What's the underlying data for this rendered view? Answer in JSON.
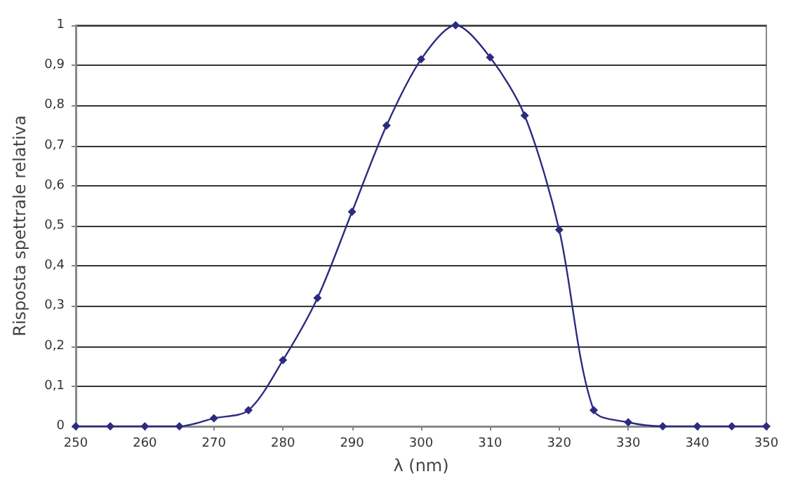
{
  "chart_data": {
    "type": "line",
    "xlabel": "λ (nm)",
    "ylabel": "Risposta spettrale relativa",
    "x": [
      250,
      255,
      260,
      265,
      270,
      275,
      280,
      285,
      290,
      295,
      300,
      305,
      310,
      315,
      320,
      325,
      330,
      335,
      340,
      345,
      350
    ],
    "series": [
      {
        "color": "#2b2b80",
        "values": [
          0,
          0,
          0,
          0,
          0.02,
          0.04,
          0.165,
          0.32,
          0.535,
          0.75,
          0.915,
          1,
          0.92,
          0.775,
          0.49,
          0.04,
          0.01,
          0,
          0,
          0,
          0
        ]
      }
    ],
    "xlim": [
      250,
      350
    ],
    "xticks": [
      250,
      260,
      270,
      280,
      290,
      300,
      310,
      320,
      330,
      340,
      350
    ],
    "ylim": [
      0,
      1
    ],
    "yticks": [
      {
        "value": 0,
        "label": "0"
      },
      {
        "value": 0.1,
        "label": "0,1"
      },
      {
        "value": 0.2,
        "label": "0,2"
      },
      {
        "value": 0.3,
        "label": "0,3"
      },
      {
        "value": 0.4,
        "label": "0,4"
      },
      {
        "value": 0.5,
        "label": "0,5"
      },
      {
        "value": 0.6,
        "label": "0,6"
      },
      {
        "value": 0.7,
        "label": "0,7"
      },
      {
        "value": 0.8,
        "label": "0,8"
      },
      {
        "value": 0.9,
        "label": "0,9"
      },
      {
        "value": 1,
        "label": "1"
      }
    ],
    "grid": "y",
    "marker": "diamond",
    "line_style": "solid"
  }
}
